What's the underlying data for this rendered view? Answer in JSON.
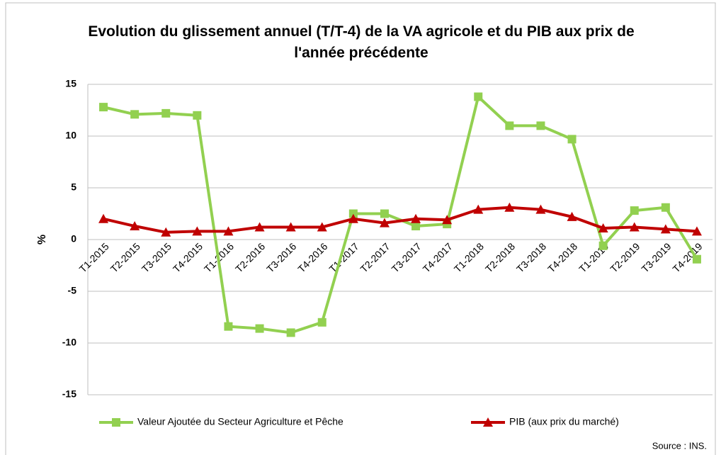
{
  "chart_data": {
    "type": "line",
    "title": "Evolution du glissement annuel (T/T-4) de la VA agricole et du PIB aux prix de l'année précédente",
    "y_label": "%",
    "source": "Source : INS.",
    "categories": [
      "T1-2015",
      "T2-2015",
      "T3-2015",
      "T4-2015",
      "T1-2016",
      "T2-2016",
      "T3-2016",
      "T4-2016",
      "T1-2017",
      "T2-2017",
      "T3-2017",
      "T4-2017",
      "T1-2018",
      "T2-2018",
      "T3-2018",
      "T4-2018",
      "T1-2019",
      "T2-2019",
      "T3-2019",
      "T4-2019"
    ],
    "series": [
      {
        "name": "Valeur Ajoutée du Secteur Agriculture et Pêche",
        "color": "#92d050",
        "marker": "square",
        "values": [
          12.8,
          12.1,
          12.2,
          12.0,
          -8.4,
          -8.6,
          -9.0,
          -8.0,
          2.5,
          2.5,
          1.3,
          1.5,
          13.8,
          11.0,
          11.0,
          9.7,
          -0.6,
          2.8,
          3.1,
          -1.9
        ]
      },
      {
        "name": "PIB (aux prix du marché)",
        "color": "#c00000",
        "marker": "triangle",
        "values": [
          2.0,
          1.3,
          0.7,
          0.8,
          0.8,
          1.2,
          1.2,
          1.2,
          2.0,
          1.6,
          2.0,
          1.9,
          2.9,
          3.1,
          2.9,
          2.2,
          1.1,
          1.2,
          1.0,
          0.8
        ]
      }
    ],
    "ylim": [
      -15,
      15
    ],
    "yticks": [
      -15,
      -10,
      -5,
      0,
      5,
      10,
      15
    ],
    "grid": true
  }
}
